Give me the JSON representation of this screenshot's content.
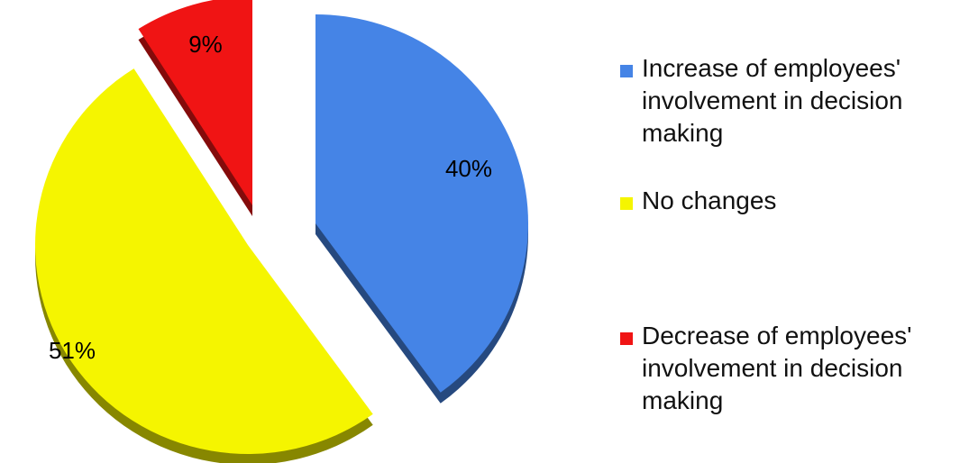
{
  "chart_data": {
    "type": "pie",
    "title": "",
    "slices": [
      {
        "label": "Increase of employees' involvement in decision making",
        "value": 40,
        "value_label": "40%",
        "color": "#4584E6"
      },
      {
        "label": "No changes",
        "value": 51,
        "value_label": "51%",
        "color": "#F5F500"
      },
      {
        "label": "Decrease of employees' involvement in decision making",
        "value": 9,
        "value_label": "9%",
        "color": "#F01414"
      }
    ],
    "exploded": true,
    "style": "3d",
    "legend_position": "right"
  },
  "legend": {
    "items": [
      {
        "label": "Increase of employees' involvement in decision making",
        "color": "#4584E6"
      },
      {
        "label": "No changes",
        "color": "#F5F500"
      },
      {
        "label": "Decrease of employees' involvement in decision making",
        "color": "#F01414"
      }
    ]
  }
}
